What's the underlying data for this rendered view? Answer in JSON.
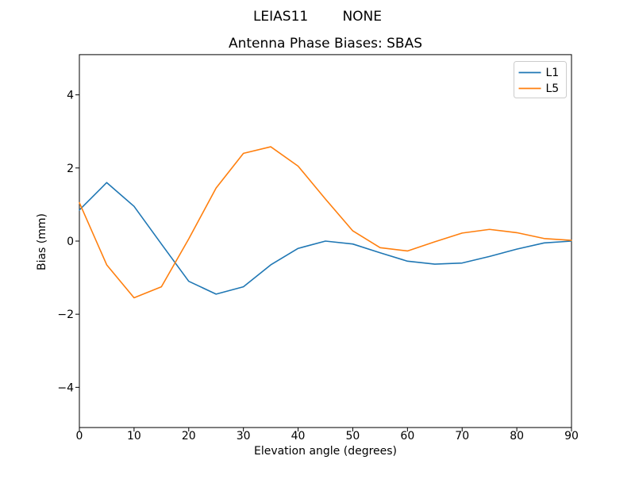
{
  "figure": {
    "suptitle": "LEIAS11        NONE",
    "background": "#ffffff"
  },
  "chart_data": {
    "type": "line",
    "suptitle": "LEIAS11        NONE",
    "title": "Antenna Phase Biases: SBAS",
    "xlabel": "Elevation angle (degrees)",
    "ylabel": "Bias (mm)",
    "xlim": [
      0,
      90
    ],
    "ylim": [
      -5.1,
      5.1
    ],
    "xticks": [
      0,
      10,
      20,
      30,
      40,
      50,
      60,
      70,
      80,
      90
    ],
    "yticks": [
      -4,
      -2,
      0,
      2,
      4
    ],
    "grid": false,
    "legend_position": "upper right",
    "axes_edge_color": "#000000",
    "legend_border_color": "#cccccc",
    "x": [
      0,
      5,
      10,
      15,
      20,
      25,
      30,
      35,
      40,
      45,
      50,
      55,
      60,
      65,
      70,
      75,
      80,
      85,
      90
    ],
    "series": [
      {
        "name": "L1",
        "color": "#1f77b4",
        "values": [
          0.85,
          1.6,
          0.95,
          -0.08,
          -1.1,
          -1.45,
          -1.25,
          -0.65,
          -0.2,
          0.0,
          -0.08,
          -0.32,
          -0.55,
          -0.63,
          -0.6,
          -0.42,
          -0.22,
          -0.05,
          0.0
        ]
      },
      {
        "name": "L5",
        "color": "#ff7f0e",
        "values": [
          1.05,
          -0.65,
          -1.55,
          -1.25,
          0.06,
          1.45,
          2.4,
          2.58,
          2.05,
          1.15,
          0.28,
          -0.18,
          -0.27,
          -0.02,
          0.22,
          0.32,
          0.23,
          0.07,
          0.02
        ]
      }
    ]
  }
}
